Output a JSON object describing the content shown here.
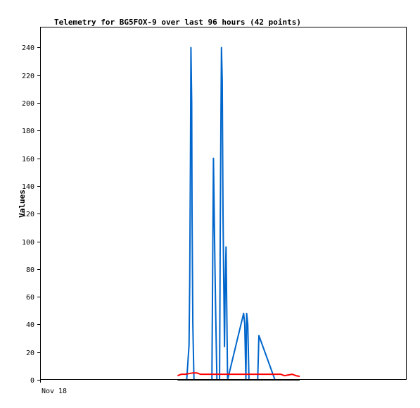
{
  "chart_data": {
    "type": "line",
    "title": "Telemetry for BG5FOX-9 over last 96 hours (42 points)",
    "xlabel": "",
    "ylabel": "Values",
    "x_tick_labels": [
      "Nov 18"
    ],
    "ylim": [
      0,
      255
    ],
    "y_ticks": [
      0,
      20,
      40,
      60,
      80,
      100,
      120,
      140,
      160,
      180,
      200,
      220,
      240
    ],
    "xlim": [
      0,
      96
    ],
    "grid": false,
    "legend": "none",
    "series": [
      {
        "color": "#0066cc",
        "points": [
          [
            38.4,
            0
          ],
          [
            39.0,
            25
          ],
          [
            39.2,
            72
          ],
          [
            39.4,
            168
          ],
          [
            39.5,
            240
          ],
          [
            39.7,
            200
          ],
          [
            39.8,
            120
          ],
          [
            40.0,
            40
          ],
          [
            40.3,
            0
          ],
          [
            45.0,
            0
          ],
          [
            45.2,
            80
          ],
          [
            45.4,
            160
          ],
          [
            45.6,
            120
          ],
          [
            45.8,
            80
          ],
          [
            46.0,
            48
          ],
          [
            46.3,
            0
          ],
          [
            47.0,
            0
          ],
          [
            47.2,
            120
          ],
          [
            47.4,
            200
          ],
          [
            47.5,
            240
          ],
          [
            47.7,
            216
          ],
          [
            47.9,
            120
          ],
          [
            48.1,
            72
          ],
          [
            48.2,
            48
          ],
          [
            48.3,
            24
          ],
          [
            48.5,
            72
          ],
          [
            48.7,
            96
          ],
          [
            48.9,
            48
          ],
          [
            49.1,
            0
          ],
          [
            53.3,
            48
          ],
          [
            53.6,
            40
          ],
          [
            53.9,
            0
          ],
          [
            54.1,
            48
          ],
          [
            54.4,
            40
          ],
          [
            54.7,
            0
          ],
          [
            57.0,
            0
          ],
          [
            57.3,
            32
          ],
          [
            61.5,
            0
          ]
        ]
      },
      {
        "color": "#ff0000",
        "points": [
          [
            36.0,
            3
          ],
          [
            37.0,
            4
          ],
          [
            38.0,
            4
          ],
          [
            39.0,
            4.5
          ],
          [
            40.0,
            5
          ],
          [
            41.0,
            5
          ],
          [
            42.0,
            4
          ],
          [
            44.0,
            4
          ],
          [
            46.0,
            4
          ],
          [
            48.0,
            4
          ],
          [
            50.0,
            4
          ],
          [
            52.0,
            4
          ],
          [
            54.0,
            4
          ],
          [
            56.0,
            4
          ],
          [
            58.0,
            4
          ],
          [
            60.0,
            4
          ],
          [
            62.0,
            4
          ],
          [
            63.0,
            4
          ],
          [
            64.0,
            3
          ],
          [
            65.0,
            3.5
          ],
          [
            66.0,
            4
          ],
          [
            67.0,
            3
          ],
          [
            68.0,
            2.5
          ]
        ]
      },
      {
        "color": "#000000",
        "points": [
          [
            36.0,
            0
          ],
          [
            68.0,
            0
          ]
        ]
      }
    ]
  }
}
